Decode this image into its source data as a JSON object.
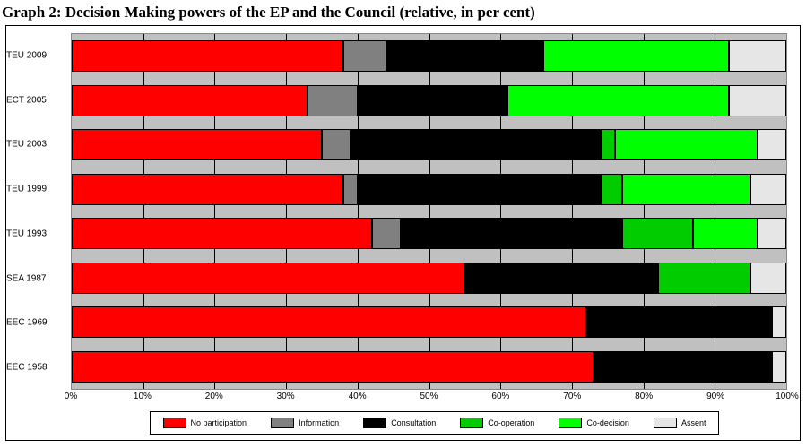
{
  "title": "Graph 2: Decision Making powers of the EP and the Council (relative, in per cent)",
  "chart": {
    "type": "stacked-bar-horizontal",
    "background_color": "#ffffff",
    "plot_background_color": "#c0c0c0",
    "grid_color": "#000000",
    "border_color": "#000000",
    "xlim": [
      0,
      100
    ],
    "xtick_step": 10,
    "xtick_suffix": "%",
    "xticks": [
      "0%",
      "10%",
      "20%",
      "30%",
      "40%",
      "50%",
      "60%",
      "70%",
      "80%",
      "90%",
      "100%"
    ],
    "label_fontsize": 10,
    "bar_fill_ratio": 0.7,
    "categories_top_to_bottom": [
      "TEU 2009",
      "ECT 2005",
      "TEU 2003",
      "TEU 1999",
      "TEU 1993",
      "SEA 1987",
      "EEC 1969",
      "EEC 1958"
    ],
    "series": [
      {
        "key": "no_participation",
        "label": "No participation",
        "color": "#ff0000"
      },
      {
        "key": "information",
        "label": "Information",
        "color": "#808080"
      },
      {
        "key": "consultation",
        "label": "Consultation",
        "color": "#000000"
      },
      {
        "key": "cooperation",
        "label": "Co-operation",
        "color": "#00cc00"
      },
      {
        "key": "codecision",
        "label": "Co-decision",
        "color": "#00ff00"
      },
      {
        "key": "assent",
        "label": "Assent",
        "color": "#e6e6e6"
      }
    ],
    "data": {
      "TEU 2009": {
        "no_participation": 38,
        "information": 6,
        "consultation": 22,
        "cooperation": 0,
        "codecision": 26,
        "assent": 8
      },
      "ECT 2005": {
        "no_participation": 33,
        "information": 7,
        "consultation": 21,
        "cooperation": 0,
        "codecision": 31,
        "assent": 8
      },
      "TEU 2003": {
        "no_participation": 35,
        "information": 4,
        "consultation": 35,
        "cooperation": 2,
        "codecision": 20,
        "assent": 4
      },
      "TEU 1999": {
        "no_participation": 38,
        "information": 2,
        "consultation": 34,
        "cooperation": 3,
        "codecision": 18,
        "assent": 5
      },
      "TEU 1993": {
        "no_participation": 42,
        "information": 4,
        "consultation": 31,
        "cooperation": 10,
        "codecision": 9,
        "assent": 4
      },
      "SEA 1987": {
        "no_participation": 55,
        "information": 0,
        "consultation": 27,
        "cooperation": 13,
        "codecision": 0,
        "assent": 5
      },
      "EEC 1969": {
        "no_participation": 72,
        "information": 0,
        "consultation": 26,
        "cooperation": 0,
        "codecision": 0,
        "assent": 2
      },
      "EEC 1958": {
        "no_participation": 73,
        "information": 0,
        "consultation": 25,
        "cooperation": 0,
        "codecision": 0,
        "assent": 2
      }
    }
  }
}
